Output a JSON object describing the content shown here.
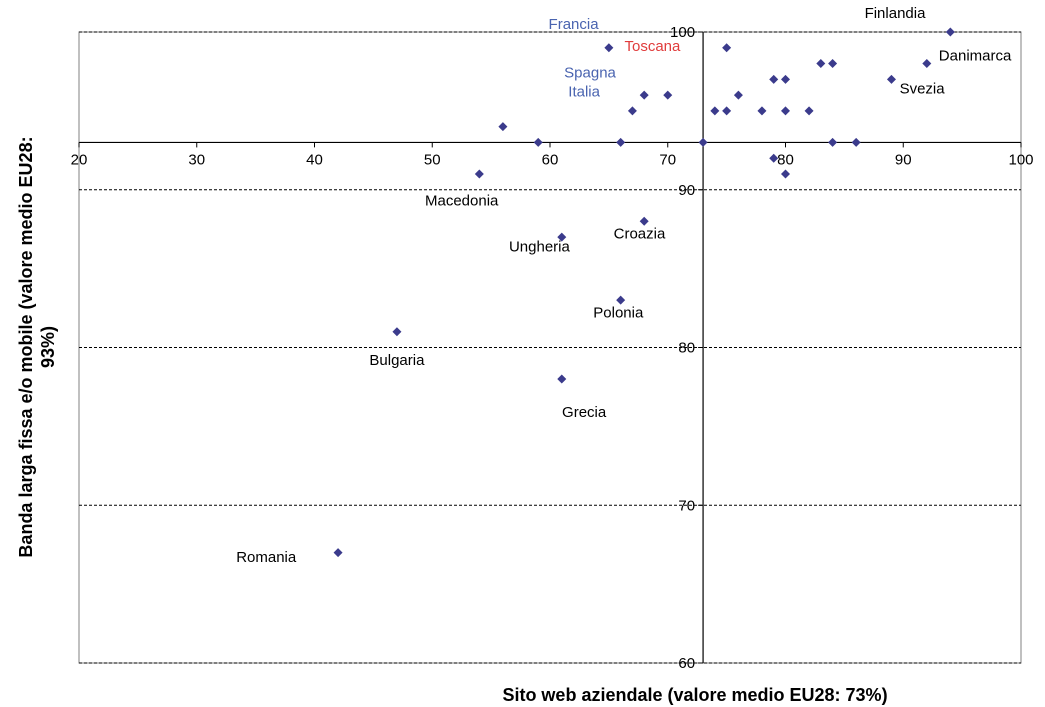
{
  "chart_data": {
    "type": "scatter",
    "title": "",
    "xlabel": "Sito web aziendale (valore medio EU28: 73%)",
    "ylabel": "Banda larga fissa e/o mobile (valore medio EU28: 93%)",
    "xlim": [
      20,
      100
    ],
    "ylim": [
      60,
      100
    ],
    "x_ticks": [
      "20",
      "30",
      "40",
      "50",
      "60",
      "70",
      "80",
      "90",
      "100"
    ],
    "y_ticks": [
      "60",
      "70",
      "80",
      "90",
      "100"
    ],
    "x_axis_crosses_at_y": 93,
    "y_axis_crosses_at_x": 73,
    "grid": "horizontal dashed",
    "marker": "diamond",
    "colors": {
      "marker": "#3b3b8c",
      "default_label": "#000000",
      "highlight_label": "#4a64b0",
      "toscana_label": "#e03c3c",
      "gridline": "#000000",
      "plot_border": "#808080"
    },
    "points": [
      {
        "x": 94,
        "y": 100
      },
      {
        "x": 92,
        "y": 98
      },
      {
        "x": 89,
        "y": 97
      },
      {
        "x": 84,
        "y": 98
      },
      {
        "x": 83,
        "y": 98
      },
      {
        "x": 80,
        "y": 97
      },
      {
        "x": 79,
        "y": 97
      },
      {
        "x": 82,
        "y": 95
      },
      {
        "x": 80,
        "y": 95
      },
      {
        "x": 78,
        "y": 95
      },
      {
        "x": 76,
        "y": 96
      },
      {
        "x": 75,
        "y": 95
      },
      {
        "x": 74,
        "y": 95
      },
      {
        "x": 75,
        "y": 99
      },
      {
        "x": 65,
        "y": 99
      },
      {
        "x": 70,
        "y": 96
      },
      {
        "x": 68,
        "y": 96
      },
      {
        "x": 67,
        "y": 95
      },
      {
        "x": 56,
        "y": 94
      },
      {
        "x": 59,
        "y": 93
      },
      {
        "x": 66,
        "y": 93
      },
      {
        "x": 73,
        "y": 93
      },
      {
        "x": 84,
        "y": 93
      },
      {
        "x": 86,
        "y": 93
      },
      {
        "x": 79,
        "y": 92
      },
      {
        "x": 80,
        "y": 91
      },
      {
        "x": 54,
        "y": 91
      },
      {
        "x": 68,
        "y": 88
      },
      {
        "x": 61,
        "y": 87
      },
      {
        "x": 66,
        "y": 83
      },
      {
        "x": 47,
        "y": 81
      },
      {
        "x": 61,
        "y": 78
      },
      {
        "x": 42,
        "y": 67
      }
    ],
    "labels": [
      {
        "text": "Finlandia",
        "x": 89.3,
        "y": 100.9,
        "color": "default"
      },
      {
        "text": "Danimarca",
        "x": 96.1,
        "y": 98.2,
        "color": "default"
      },
      {
        "text": "Svezia",
        "x": 91.6,
        "y": 96.1,
        "color": "default"
      },
      {
        "text": "Francia",
        "x": 62,
        "y": 100.2,
        "color": "highlight"
      },
      {
        "text": "Toscana",
        "x": 68.7,
        "y": 98.8,
        "color": "toscana"
      },
      {
        "text": "Spagna",
        "x": 63.4,
        "y": 97.1,
        "color": "highlight"
      },
      {
        "text": "Italia",
        "x": 62.9,
        "y": 95.9,
        "color": "highlight"
      },
      {
        "text": "Macedonia",
        "x": 52.5,
        "y": 89,
        "color": "default"
      },
      {
        "text": "Croazia",
        "x": 67.6,
        "y": 86.9,
        "color": "default"
      },
      {
        "text": "Ungheria",
        "x": 59.1,
        "y": 86.1,
        "color": "default"
      },
      {
        "text": "Polonia",
        "x": 65.8,
        "y": 81.9,
        "color": "default"
      },
      {
        "text": "Bulgaria",
        "x": 47,
        "y": 78.9,
        "color": "default"
      },
      {
        "text": "Grecia",
        "x": 62.9,
        "y": 75.6,
        "color": "default"
      },
      {
        "text": "Romania",
        "x": 35.9,
        "y": 66.4,
        "color": "default"
      }
    ]
  }
}
